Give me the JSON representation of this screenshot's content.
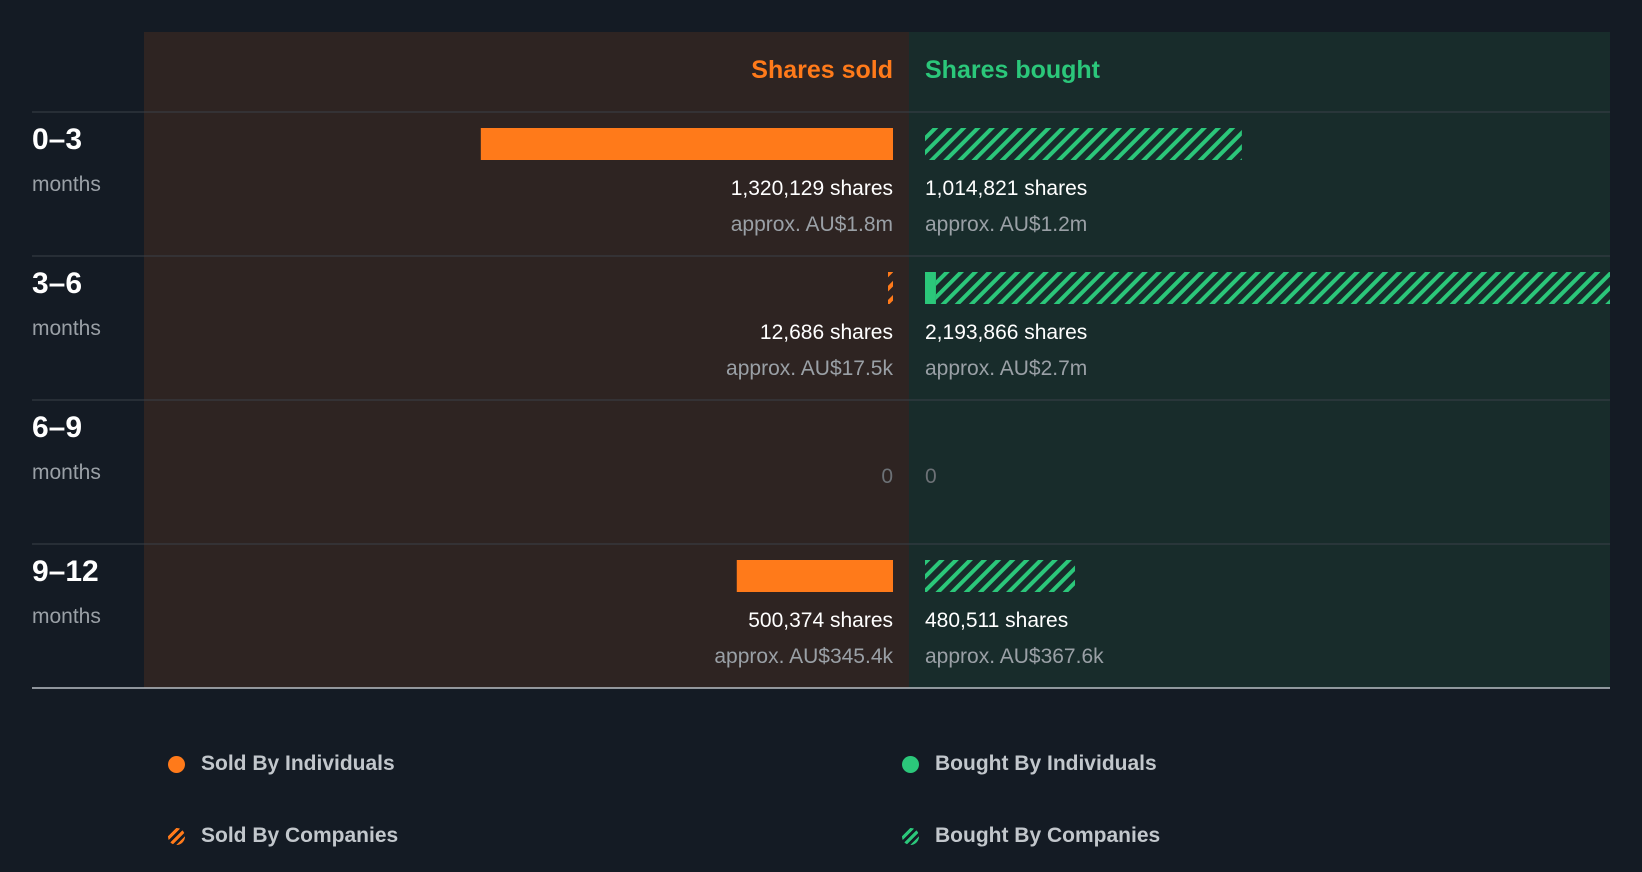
{
  "chart_data": {
    "type": "bar",
    "orientation": "diverging-horizontal",
    "header": {
      "sold_label": "Shares sold",
      "bought_label": "Shares bought"
    },
    "periods": [
      {
        "range": "0–3",
        "unit": "months",
        "sold": {
          "individuals": 1320129,
          "companies": 0,
          "shares_text": "1,320,129 shares",
          "value_text": "approx. AU$1.8m"
        },
        "bought": {
          "individuals": 0,
          "companies": 1014821,
          "shares_text": "1,014,821 shares",
          "value_text": "approx. AU$1.2m"
        }
      },
      {
        "range": "3–6",
        "unit": "months",
        "sold": {
          "individuals": 0,
          "companies": 12686,
          "shares_text": "12,686 shares",
          "value_text": "approx. AU$17.5k"
        },
        "bought": {
          "individuals": 35000,
          "companies": 2158866,
          "shares_text": "2,193,866 shares",
          "value_text": "approx. AU$2.7m"
        }
      },
      {
        "range": "6–9",
        "unit": "months",
        "sold": {
          "individuals": 0,
          "companies": 0,
          "shares_text": "0",
          "value_text": ""
        },
        "bought": {
          "individuals": 0,
          "companies": 0,
          "shares_text": "0",
          "value_text": ""
        }
      },
      {
        "range": "9–12",
        "unit": "months",
        "sold": {
          "individuals": 500374,
          "companies": 0,
          "shares_text": "500,374 shares",
          "value_text": "approx. AU$345.4k"
        },
        "bought": {
          "individuals": 0,
          "companies": 480511,
          "shares_text": "480,511 shares",
          "value_text": "approx. AU$367.6k"
        }
      }
    ],
    "legend": [
      {
        "label": "Sold By Individuals",
        "pattern": "solid",
        "color": "#ff7a1a"
      },
      {
        "label": "Bought By Individuals",
        "pattern": "solid",
        "color": "#2bc77a"
      },
      {
        "label": "Sold By Companies",
        "pattern": "hatched",
        "color": "#ff7a1a"
      },
      {
        "label": "Bought By Companies",
        "pattern": "hatched",
        "color": "#2bc77a"
      }
    ],
    "legend_position": "bottom",
    "colors": {
      "background": "#141b24",
      "sold": "#ff7a1a",
      "bought": "#2bc77a",
      "sold_panel": "#2e2422",
      "bought_panel": "#182c2b",
      "divider": "#3a4048",
      "baseline": "#b8bec4",
      "primary_text": "#ffffff",
      "secondary_text": "#9aa0a6",
      "zero_text": "#6c7176"
    }
  }
}
